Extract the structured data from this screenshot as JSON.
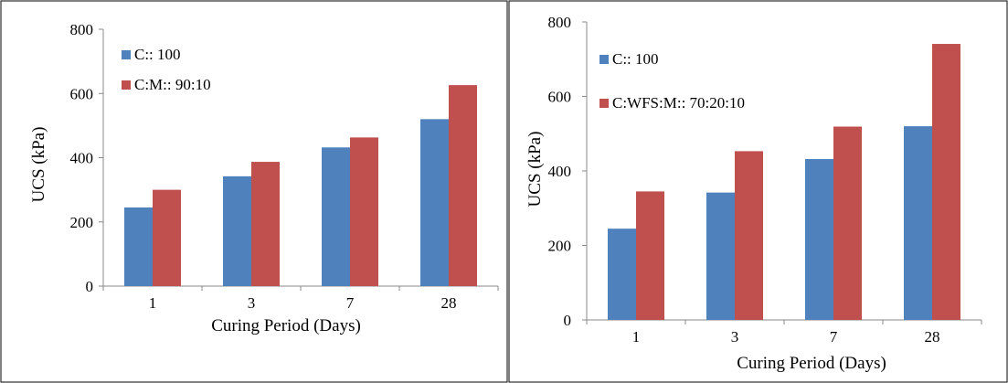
{
  "chart_data": [
    {
      "type": "bar",
      "categories": [
        "1",
        "3",
        "7",
        "28"
      ],
      "series": [
        {
          "name": "C:: 100",
          "values": [
            245,
            342,
            432,
            520
          ],
          "color": "#4f81bd"
        },
        {
          "name": "C:M:: 90:10",
          "values": [
            300,
            387,
            463,
            626
          ],
          "color": "#c0504d"
        }
      ],
      "xlabel": "Curing Period (Days)",
      "ylabel": "UCS (kPa)",
      "ylim": [
        0,
        800
      ],
      "yticks": [
        "0",
        "200",
        "400",
        "600",
        "800"
      ],
      "grid": false,
      "legend_position": "top-left"
    },
    {
      "type": "bar",
      "categories": [
        "1",
        "3",
        "7",
        "28"
      ],
      "series": [
        {
          "name": "C:: 100",
          "values": [
            245,
            342,
            432,
            520
          ],
          "color": "#4f81bd"
        },
        {
          "name": "C:WFS:M:: 70:20:10",
          "values": [
            345,
            453,
            519,
            741
          ],
          "color": "#c0504d"
        }
      ],
      "xlabel": "Curing Period (Days)",
      "ylabel": "UCS (kPa)",
      "ylim": [
        0,
        800
      ],
      "yticks": [
        "0",
        "200",
        "400",
        "600",
        "800"
      ],
      "grid": false,
      "legend_position": "top-left"
    }
  ]
}
